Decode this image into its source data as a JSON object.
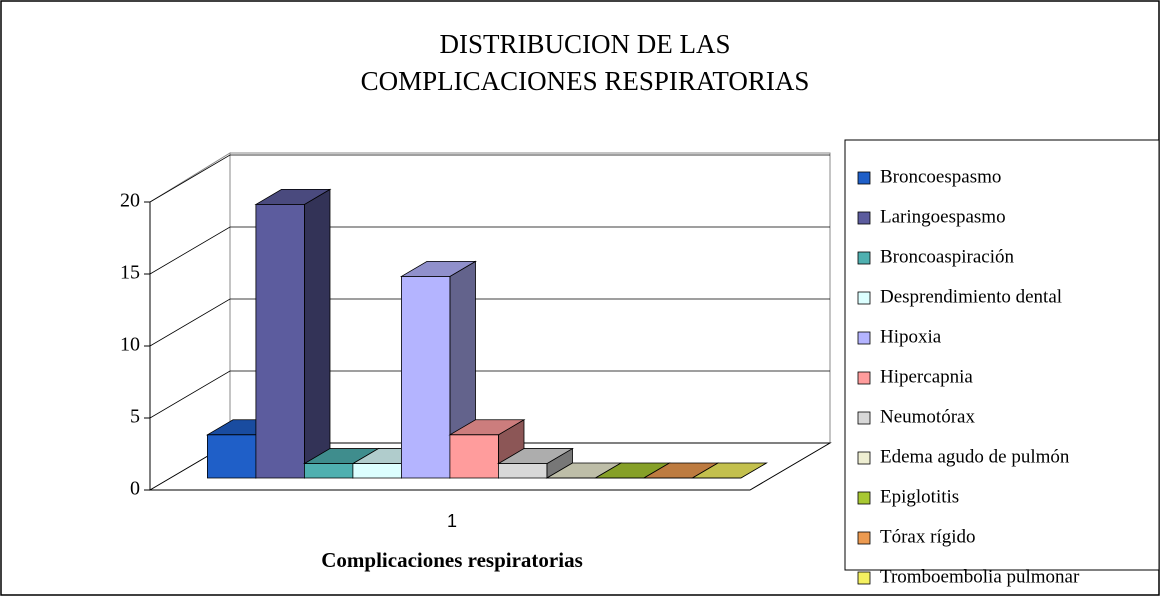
{
  "chart_data": {
    "type": "bar3d",
    "title": [
      "DISTRIBUCION DE LAS",
      "COMPLICACIONES RESPIRATORIAS"
    ],
    "x_label": "Complicaciones respiratorias",
    "categories": [
      "1"
    ],
    "ylim": [
      0,
      20
    ],
    "yticks": [
      0,
      5,
      10,
      15,
      20
    ],
    "grid": true,
    "legend": "right",
    "series": [
      {
        "name": "Broncoespasmo",
        "color": "#1f5fc8",
        "values": [
          3
        ]
      },
      {
        "name": "Laringoespasmo",
        "color": "#5c5c9e",
        "values": [
          19
        ]
      },
      {
        "name": "Broncoaspiración",
        "color": "#4fb0b0",
        "values": [
          1
        ]
      },
      {
        "name": "Desprendimiento dental",
        "color": "#dcffff",
        "values": [
          1
        ]
      },
      {
        "name": "Hipoxia",
        "color": "#b4b4ff",
        "values": [
          14
        ]
      },
      {
        "name": "Hipercapnia",
        "color": "#ff9c9c",
        "values": [
          3
        ]
      },
      {
        "name": "Neumotórax",
        "color": "#d8d8d8",
        "values": [
          1
        ]
      },
      {
        "name": "Edema agudo de pulmón",
        "color": "#eeeed2",
        "values": [
          0
        ]
      },
      {
        "name": "Epiglotitis",
        "color": "#a8c832",
        "values": [
          0
        ]
      },
      {
        "name": "Tórax rígido",
        "color": "#ec9a50",
        "values": [
          0
        ]
      },
      {
        "name": "Tromboembolia pulmonar",
        "color": "#f4f060",
        "values": [
          0
        ]
      }
    ]
  }
}
